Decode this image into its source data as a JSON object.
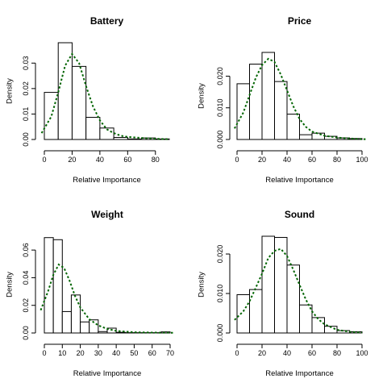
{
  "chart_data": [
    {
      "type": "histogram",
      "title": "Battery",
      "xlabel": "Relative Importance",
      "ylabel": "Density",
      "xlim": [
        0,
        90
      ],
      "ylim": [
        0,
        0.038
      ],
      "xticks": [
        "0",
        "20",
        "40",
        "60",
        "80"
      ],
      "yticks": [
        "0.00",
        "0.01",
        "0.02",
        "0.03"
      ],
      "bins": [
        {
          "x0": 0,
          "x1": 10,
          "density": 0.0185
        },
        {
          "x0": 10,
          "x1": 20,
          "density": 0.038
        },
        {
          "x0": 20,
          "x1": 30,
          "density": 0.0287
        },
        {
          "x0": 30,
          "x1": 40,
          "density": 0.0087
        },
        {
          "x0": 40,
          "x1": 50,
          "density": 0.0045
        },
        {
          "x0": 50,
          "x1": 60,
          "density": 0.0008
        },
        {
          "x0": 60,
          "x1": 70,
          "density": 0.0002
        },
        {
          "x0": 70,
          "x1": 80,
          "density": 0.0006
        },
        {
          "x0": 80,
          "x1": 90,
          "density": 0.0002
        }
      ],
      "density_curve": {
        "x": [
          -2,
          5,
          10,
          15,
          20,
          25,
          30,
          35,
          40,
          45,
          50,
          55,
          60,
          70,
          80,
          90
        ],
        "y": [
          0.0025,
          0.009,
          0.0185,
          0.029,
          0.0336,
          0.03,
          0.021,
          0.013,
          0.0075,
          0.004,
          0.0025,
          0.0015,
          0.001,
          0.0006,
          0.0003,
          0.0001
        ]
      }
    },
    {
      "type": "histogram",
      "title": "Price",
      "xlabel": "Relative Importance",
      "ylabel": "Density",
      "xlim": [
        0,
        100
      ],
      "ylim": [
        0,
        0.0275
      ],
      "xticks": [
        "0",
        "20",
        "40",
        "60",
        "80",
        "100"
      ],
      "yticks": [
        "0.000",
        "0.010",
        "0.020"
      ],
      "bins": [
        {
          "x0": 0,
          "x1": 10,
          "density": 0.0176
        },
        {
          "x0": 10,
          "x1": 20,
          "density": 0.0238
        },
        {
          "x0": 20,
          "x1": 30,
          "density": 0.0275
        },
        {
          "x0": 30,
          "x1": 40,
          "density": 0.0183
        },
        {
          "x0": 40,
          "x1": 50,
          "density": 0.008
        },
        {
          "x0": 50,
          "x1": 60,
          "density": 0.0015
        },
        {
          "x0": 60,
          "x1": 70,
          "density": 0.002
        },
        {
          "x0": 70,
          "x1": 80,
          "density": 0.001
        },
        {
          "x0": 80,
          "x1": 90,
          "density": 0.0005
        },
        {
          "x0": 90,
          "x1": 100,
          "density": 0.0003
        }
      ],
      "density_curve": {
        "x": [
          -2,
          5,
          10,
          15,
          20,
          25,
          30,
          35,
          40,
          45,
          50,
          55,
          60,
          70,
          80,
          90,
          100,
          103
        ],
        "y": [
          0.0035,
          0.0085,
          0.014,
          0.0195,
          0.0235,
          0.0255,
          0.0245,
          0.0205,
          0.0155,
          0.0105,
          0.0065,
          0.004,
          0.0025,
          0.0012,
          0.0006,
          0.0003,
          0.0001,
          0.0001
        ]
      }
    },
    {
      "type": "histogram",
      "title": "Weight",
      "xlabel": "Relative Importance",
      "ylabel": "Density",
      "xlim": [
        0,
        70
      ],
      "ylim": [
        0,
        0.07
      ],
      "xticks": [
        "0",
        "10",
        "20",
        "30",
        "40",
        "50",
        "60",
        "70"
      ],
      "yticks": [
        "0.00",
        "0.02",
        "0.04",
        "0.06"
      ],
      "bins": [
        {
          "x0": 0,
          "x1": 5,
          "density": 0.069
        },
        {
          "x0": 5,
          "x1": 10,
          "density": 0.0675
        },
        {
          "x0": 10,
          "x1": 15,
          "density": 0.0155
        },
        {
          "x0": 15,
          "x1": 20,
          "density": 0.0275
        },
        {
          "x0": 20,
          "x1": 25,
          "density": 0.008
        },
        {
          "x0": 25,
          "x1": 30,
          "density": 0.0095
        },
        {
          "x0": 30,
          "x1": 35,
          "density": 0.001
        },
        {
          "x0": 35,
          "x1": 40,
          "density": 0.0035
        },
        {
          "x0": 40,
          "x1": 45,
          "density": 0.0005
        },
        {
          "x0": 45,
          "x1": 50,
          "density": 0.0002
        },
        {
          "x0": 50,
          "x1": 55,
          "density": 0.0002
        },
        {
          "x0": 55,
          "x1": 60,
          "density": 0.0002
        },
        {
          "x0": 60,
          "x1": 65,
          "density": 0.0002
        },
        {
          "x0": 65,
          "x1": 70,
          "density": 0.0008
        }
      ],
      "density_curve": {
        "x": [
          -2,
          2,
          5,
          8,
          11,
          14,
          17,
          20,
          25,
          30,
          35,
          40,
          45,
          50,
          60,
          70,
          72
        ],
        "y": [
          0.0165,
          0.03,
          0.042,
          0.0495,
          0.047,
          0.038,
          0.027,
          0.0185,
          0.01,
          0.0055,
          0.003,
          0.0015,
          0.001,
          0.0005,
          0.0003,
          0.0002,
          0.0002
        ]
      }
    },
    {
      "type": "histogram",
      "title": "Sound",
      "xlabel": "Relative Importance",
      "ylabel": "Density",
      "xlim": [
        0,
        100
      ],
      "ylim": [
        0,
        0.0245
      ],
      "xticks": [
        "0",
        "20",
        "40",
        "60",
        "80",
        "100"
      ],
      "yticks": [
        "0.000",
        "0.010",
        "0.020"
      ],
      "bins": [
        {
          "x0": 0,
          "x1": 10,
          "density": 0.0097
        },
        {
          "x0": 10,
          "x1": 20,
          "density": 0.011
        },
        {
          "x0": 20,
          "x1": 30,
          "density": 0.0245
        },
        {
          "x0": 30,
          "x1": 40,
          "density": 0.0242
        },
        {
          "x0": 40,
          "x1": 50,
          "density": 0.0172
        },
        {
          "x0": 50,
          "x1": 60,
          "density": 0.0071
        },
        {
          "x0": 60,
          "x1": 70,
          "density": 0.0039
        },
        {
          "x0": 70,
          "x1": 80,
          "density": 0.0017
        },
        {
          "x0": 80,
          "x1": 90,
          "density": 0.0006
        },
        {
          "x0": 90,
          "x1": 100,
          "density": 0.0003
        }
      ],
      "density_curve": {
        "x": [
          -2,
          5,
          10,
          15,
          20,
          25,
          30,
          35,
          40,
          45,
          50,
          55,
          60,
          65,
          70,
          80,
          90,
          100
        ],
        "y": [
          0.0033,
          0.0055,
          0.008,
          0.0115,
          0.015,
          0.019,
          0.0208,
          0.0213,
          0.0195,
          0.016,
          0.0122,
          0.0085,
          0.0055,
          0.0035,
          0.0022,
          0.0008,
          0.0003,
          0.0001
        ]
      }
    }
  ]
}
